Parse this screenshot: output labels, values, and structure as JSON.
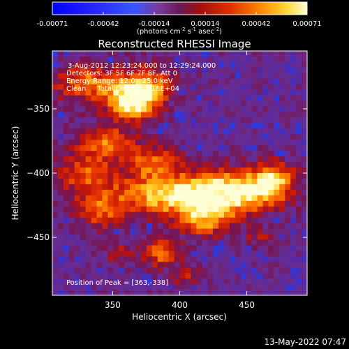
{
  "chart_data": {
    "type": "heatmap",
    "title": "Reconstructed RHESSI Image",
    "xlabel": "Heliocentric X (arcsec)",
    "ylabel": "Heliocentric Y (arcsec)",
    "xlim": [
      305,
      495
    ],
    "ylim": [
      -495,
      -305
    ],
    "xticks": [
      350,
      400,
      450
    ],
    "yticks": [
      -350,
      -400,
      -450
    ],
    "colorbar": {
      "min": -0.00071,
      "max": 0.00071,
      "tick_labels": [
        "-0.00071",
        "-0.00042",
        "-0.00014",
        "0.00014",
        "0.00042",
        "0.00071"
      ],
      "unit_label": "(photons cm",
      "unit_exp1": "-2",
      "unit_mid": " s",
      "unit_exp2": "-1",
      "unit_mid2": " asec",
      "unit_exp3": "-2",
      "unit_end": ")"
    },
    "annotations": [
      "3-Aug-2012 12:23:24.000 to 12:29:24.000",
      "Detectors: 3F 5F 6F 7F 8F, Att 0",
      "Energy Range: 12.0 - 25.0 keV",
      "Clean     Total Counts: 1.16E+04"
    ],
    "peak_label": "Position of Peak = [363,-338]",
    "peak": [
      363,
      -338
    ],
    "bright_regions": [
      {
        "x": 365,
        "y": -345,
        "sx": 14,
        "sy": 10,
        "amp": 1.0
      },
      {
        "x": 330,
        "y": -330,
        "sx": 18,
        "sy": 10,
        "amp": 0.65
      },
      {
        "x": 375,
        "y": -330,
        "sx": 14,
        "sy": 10,
        "amp": 0.6
      },
      {
        "x": 345,
        "y": -375,
        "sx": 14,
        "sy": 9,
        "amp": 0.6
      },
      {
        "x": 330,
        "y": -400,
        "sx": 16,
        "sy": 12,
        "amp": 0.55
      },
      {
        "x": 380,
        "y": -392,
        "sx": 14,
        "sy": 10,
        "amp": 0.6
      },
      {
        "x": 395,
        "y": -418,
        "sx": 32,
        "sy": 11,
        "amp": 0.85
      },
      {
        "x": 440,
        "y": -415,
        "sx": 24,
        "sy": 12,
        "amp": 0.85
      },
      {
        "x": 470,
        "y": -405,
        "sx": 12,
        "sy": 10,
        "amp": 0.65
      },
      {
        "x": 418,
        "y": -438,
        "sx": 14,
        "sy": 8,
        "amp": 0.6
      },
      {
        "x": 340,
        "y": -430,
        "sx": 12,
        "sy": 10,
        "amp": 0.5
      },
      {
        "x": 386,
        "y": -462,
        "sx": 10,
        "sy": 8,
        "amp": 0.6
      },
      {
        "x": 355,
        "y": -462,
        "sx": 8,
        "sy": 6,
        "amp": 0.35
      },
      {
        "x": 405,
        "y": -480,
        "sx": 8,
        "sy": 6,
        "amp": 0.35
      },
      {
        "x": 460,
        "y": -450,
        "sx": 8,
        "sy": 6,
        "amp": 0.3
      }
    ]
  },
  "footer": {
    "timestamp": "13-May-2022 07:47"
  }
}
